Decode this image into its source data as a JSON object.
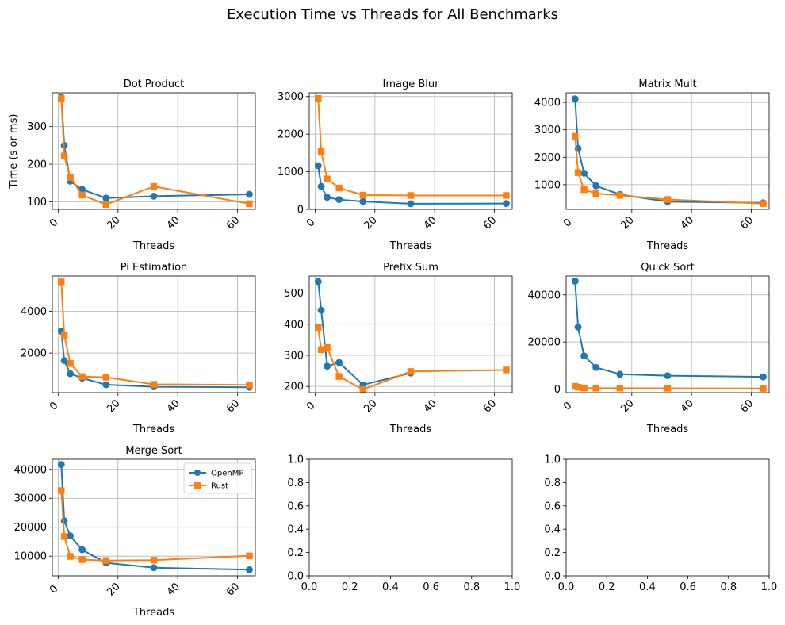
{
  "figure_title": "Execution Time vs Threads for All Benchmarks",
  "series_styles": [
    {
      "name": "OpenMP",
      "color": "#1f77b4",
      "marker": "circle"
    },
    {
      "name": "Rust",
      "color": "#ff7f0e",
      "marker": "square"
    }
  ],
  "chart_data": [
    {
      "type": "line",
      "title": "Dot Product",
      "xlabel": "Threads",
      "ylabel": "Time (s or ms)",
      "xlim": [
        -2,
        66
      ],
      "ylim": [
        80,
        390
      ],
      "xticks": [
        "0",
        "20",
        "40",
        "60"
      ],
      "xtick_values": [
        0,
        20,
        40,
        60
      ],
      "yticks": [
        "100",
        "200",
        "300"
      ],
      "ytick_values": [
        100,
        200,
        300
      ],
      "grid": true,
      "legend": null,
      "series": [
        {
          "name": "OpenMP",
          "x": [
            1,
            2,
            4,
            8,
            16,
            32,
            64
          ],
          "y": [
            378,
            250,
            155,
            133,
            110,
            115,
            120
          ]
        },
        {
          "name": "Rust",
          "x": [
            1,
            2,
            4,
            8,
            16,
            32,
            64
          ],
          "y": [
            375,
            222,
            165,
            118,
            93,
            141,
            95
          ]
        }
      ]
    },
    {
      "type": "line",
      "title": "Image Blur",
      "xlabel": "Threads",
      "ylabel": "",
      "xlim": [
        -2,
        66
      ],
      "ylim": [
        0,
        3100
      ],
      "xticks": [
        "0",
        "20",
        "40",
        "60"
      ],
      "xtick_values": [
        0,
        20,
        40,
        60
      ],
      "yticks": [
        "0",
        "1000",
        "2000",
        "3000"
      ],
      "ytick_values": [
        0,
        1000,
        2000,
        3000
      ],
      "grid": true,
      "legend": null,
      "series": [
        {
          "name": "OpenMP",
          "x": [
            1,
            2,
            4,
            8,
            16,
            32,
            64
          ],
          "y": [
            1160,
            610,
            320,
            260,
            210,
            150,
            155
          ]
        },
        {
          "name": "Rust",
          "x": [
            1,
            2,
            4,
            8,
            16,
            32,
            64
          ],
          "y": [
            2950,
            1540,
            810,
            570,
            380,
            370,
            370
          ]
        }
      ]
    },
    {
      "type": "line",
      "title": "Matrix Mult",
      "xlabel": "Threads",
      "ylabel": "",
      "xlim": [
        -2,
        66
      ],
      "ylim": [
        100,
        4350
      ],
      "xticks": [
        "0",
        "20",
        "40",
        "60"
      ],
      "xtick_values": [
        0,
        20,
        40,
        60
      ],
      "yticks": [
        "1000",
        "2000",
        "3000",
        "4000"
      ],
      "ytick_values": [
        1000,
        2000,
        3000,
        4000
      ],
      "grid": true,
      "legend": null,
      "series": [
        {
          "name": "OpenMP",
          "x": [
            1,
            2,
            4,
            8,
            16,
            32,
            64
          ],
          "y": [
            4130,
            2320,
            1420,
            960,
            640,
            380,
            340
          ]
        },
        {
          "name": "Rust",
          "x": [
            1,
            2,
            4,
            8,
            16,
            32,
            64
          ],
          "y": [
            2760,
            1440,
            820,
            680,
            610,
            460,
            310
          ]
        }
      ]
    },
    {
      "type": "line",
      "title": "Pi Estimation",
      "xlabel": "Threads",
      "ylabel": "",
      "xlim": [
        -2,
        66
      ],
      "ylim": [
        100,
        5700
      ],
      "xticks": [
        "0",
        "20",
        "40",
        "60"
      ],
      "xtick_values": [
        0,
        20,
        40,
        60
      ],
      "yticks": [
        "2000",
        "4000"
      ],
      "ytick_values": [
        2000,
        4000
      ],
      "grid": true,
      "legend": null,
      "series": [
        {
          "name": "OpenMP",
          "x": [
            1,
            2,
            4,
            8,
            16,
            32,
            64
          ],
          "y": [
            3050,
            1640,
            1010,
            800,
            480,
            380,
            360
          ]
        },
        {
          "name": "Rust",
          "x": [
            1,
            2,
            4,
            8,
            16,
            32,
            64
          ],
          "y": [
            5420,
            2840,
            1500,
            870,
            840,
            500,
            470
          ]
        }
      ]
    },
    {
      "type": "line",
      "title": "Prefix Sum",
      "xlabel": "Threads",
      "ylabel": "",
      "xlim": [
        -2,
        66
      ],
      "ylim": [
        180,
        555
      ],
      "xticks": [
        "0",
        "20",
        "40",
        "60"
      ],
      "xtick_values": [
        0,
        20,
        40,
        60
      ],
      "yticks": [
        "200",
        "300",
        "400",
        "500"
      ],
      "ytick_values": [
        200,
        300,
        400,
        500
      ],
      "grid": true,
      "legend": null,
      "series": [
        {
          "name": "OpenMP",
          "x": [
            1,
            2,
            4,
            8,
            16,
            32
          ],
          "y": [
            537,
            445,
            265,
            277,
            205,
            243
          ]
        },
        {
          "name": "Rust",
          "x": [
            1,
            2,
            4,
            8,
            16,
            32,
            64
          ],
          "y": [
            390,
            318,
            325,
            232,
            190,
            248,
            253
          ]
        }
      ]
    },
    {
      "type": "line",
      "title": "Quick Sort",
      "xlabel": "Threads",
      "ylabel": "",
      "xlim": [
        -2,
        66
      ],
      "ylim": [
        -1500,
        48000
      ],
      "xticks": [
        "0",
        "20",
        "40",
        "60"
      ],
      "xtick_values": [
        0,
        20,
        40,
        60
      ],
      "yticks": [
        "0",
        "20000",
        "40000"
      ],
      "ytick_values": [
        0,
        20000,
        40000
      ],
      "grid": true,
      "legend": null,
      "series": [
        {
          "name": "OpenMP",
          "x": [
            1,
            2,
            4,
            8,
            16,
            32,
            64
          ],
          "y": [
            45800,
            26300,
            14100,
            9200,
            6300,
            5700,
            5200
          ]
        },
        {
          "name": "Rust",
          "x": [
            1,
            2,
            4,
            8,
            16,
            32,
            64
          ],
          "y": [
            1200,
            800,
            500,
            400,
            400,
            350,
            300
          ]
        }
      ]
    },
    {
      "type": "line",
      "title": "Merge Sort",
      "xlabel": "Threads",
      "ylabel": "",
      "xlim": [
        -2,
        66
      ],
      "ylim": [
        3200,
        43500
      ],
      "xticks": [
        "0",
        "20",
        "40",
        "60"
      ],
      "xtick_values": [
        0,
        20,
        40,
        60
      ],
      "yticks": [
        "10000",
        "20000",
        "30000",
        "40000"
      ],
      "ytick_values": [
        10000,
        20000,
        30000,
        40000
      ],
      "grid": true,
      "legend": "upper right",
      "series": [
        {
          "name": "OpenMP",
          "x": [
            1,
            2,
            4,
            8,
            16,
            32,
            64
          ],
          "y": [
            41700,
            22200,
            17000,
            12200,
            7700,
            6000,
            5300
          ]
        },
        {
          "name": "Rust",
          "x": [
            1,
            2,
            4,
            8,
            16,
            32,
            64
          ],
          "y": [
            32700,
            16800,
            9900,
            8800,
            8500,
            8600,
            10100
          ]
        }
      ]
    },
    {
      "type": "line",
      "title": "",
      "xlabel": "",
      "ylabel": "",
      "xlim": [
        0,
        1
      ],
      "ylim": [
        0,
        1
      ],
      "xticks": [
        "0.0",
        "0.2",
        "0.4",
        "0.6",
        "0.8",
        "1.0"
      ],
      "xtick_values": [
        0,
        0.2,
        0.4,
        0.6,
        0.8,
        1.0
      ],
      "yticks": [
        "0.0",
        "0.2",
        "0.4",
        "0.6",
        "0.8",
        "1.0"
      ],
      "ytick_values": [
        0,
        0.2,
        0.4,
        0.6,
        0.8,
        1.0
      ],
      "grid": false,
      "legend": null,
      "series": []
    },
    {
      "type": "line",
      "title": "",
      "xlabel": "",
      "ylabel": "",
      "xlim": [
        0,
        1
      ],
      "ylim": [
        0,
        1
      ],
      "xticks": [
        "0.0",
        "0.2",
        "0.4",
        "0.6",
        "0.8",
        "1.0"
      ],
      "xtick_values": [
        0,
        0.2,
        0.4,
        0.6,
        0.8,
        1.0
      ],
      "yticks": [
        "0.0",
        "0.2",
        "0.4",
        "0.6",
        "0.8",
        "1.0"
      ],
      "ytick_values": [
        0,
        0.2,
        0.4,
        0.6,
        0.8,
        1.0
      ],
      "grid": false,
      "legend": null,
      "series": []
    }
  ]
}
